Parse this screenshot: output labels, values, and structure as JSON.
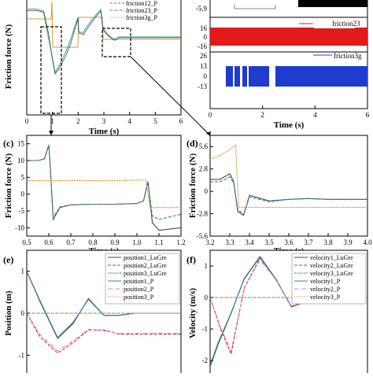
{
  "figure": {
    "title": "",
    "panel_labels": [
      "(c)",
      "(d)",
      "(e)",
      "(f)"
    ]
  },
  "panel_a": {
    "ylabel": "Friction force (N)",
    "xlabel": "Time (s)",
    "xticks": [
      "0",
      "1",
      "2",
      "3",
      "4",
      "5",
      "6"
    ],
    "legend": [
      "friction12_P",
      "friction23_P",
      "friction3g_P"
    ],
    "colors": {
      "s1": "#4a4a4a",
      "s2": "#3a7fa6",
      "s3": "#d9973a",
      "s_green": "#2f8f6a",
      "s_teal": "#4fb3a6"
    }
  },
  "panel_b": {
    "xlabel": "Time (s)",
    "xticks": [
      "0",
      "2",
      "4",
      "6"
    ],
    "top_ytick": "-5.9",
    "rows": [
      {
        "name": "friction23",
        "ticks": [
          "16",
          "0",
          "-16"
        ],
        "color": "#e31a1c"
      },
      {
        "name": "friction3g",
        "ticks": [
          "26",
          "13",
          "0",
          "-13"
        ],
        "color": "#1f3ccf"
      }
    ]
  },
  "chart_data": [
    {
      "type": "line",
      "panel": "c",
      "xlabel": "Time (s)",
      "ylabel": "Friction force (N)",
      "xlim": [
        0.5,
        1.2
      ],
      "ylim": [
        -12.5,
        17.5
      ],
      "xticks": [
        "0.5",
        "0.6",
        "0.7",
        "0.8",
        "0.9",
        "1.0",
        "1.1",
        "1.2"
      ],
      "yticks": [
        "15",
        "10",
        "5",
        "0",
        "-5",
        "-10"
      ],
      "series": [
        {
          "color": "#4a4a4a",
          "x": [
            0.5,
            0.55,
            0.58,
            0.6,
            0.605,
            0.62,
            0.65,
            0.7,
            0.8,
            0.9,
            1.0,
            1.03,
            1.05,
            1.07,
            1.1,
            1.2
          ],
          "y": [
            10,
            10,
            10.5,
            14.5,
            10,
            -7.5,
            -4,
            -3.2,
            -3,
            -3,
            -2.8,
            -2,
            3.8,
            -8.5,
            -10.8,
            -10
          ]
        },
        {
          "color": "#3a7fa6",
          "x": [
            0.5,
            0.55,
            0.58,
            0.6,
            0.605,
            0.62,
            0.65,
            0.7,
            0.8,
            0.9,
            1.0,
            1.03,
            1.05,
            1.07,
            1.1,
            1.2
          ],
          "y": [
            10,
            10,
            10.5,
            14.8,
            10,
            -7,
            -3.8,
            -3.2,
            -3,
            -3,
            -2.8,
            -2,
            3.6,
            -6.5,
            -7.5,
            -6
          ]
        },
        {
          "color": "#d9973a",
          "x": [
            0.5,
            0.6,
            0.62,
            0.9,
            1.04,
            1.06,
            1.2
          ],
          "y": [
            4,
            4,
            4,
            4,
            4.2,
            -4,
            -4
          ]
        }
      ]
    },
    {
      "type": "line",
      "panel": "d",
      "xlabel": "Time (s)",
      "ylabel": "Friction force (N)",
      "xlim": [
        3.2,
        4.0
      ],
      "ylim": [
        -5.6,
        7.0
      ],
      "xticks": [
        "3.2",
        "3.3",
        "3.4",
        "3.5",
        "3.6",
        "3.7",
        "3.8",
        "3.9",
        "4.0"
      ],
      "yticks": [
        "5.6",
        "2.8",
        "0",
        "-2.8",
        "-5.6"
      ],
      "series": [
        {
          "color": "#4a4a4a",
          "x": [
            3.2,
            3.25,
            3.3,
            3.32,
            3.34,
            3.37,
            3.4,
            3.5,
            3.6,
            3.7,
            3.8,
            3.9,
            4.0
          ],
          "y": [
            1.5,
            1.5,
            2.2,
            1.2,
            -2.5,
            -3.0,
            -0.5,
            -1.2,
            -1.0,
            -0.9,
            -1.0,
            -1.0,
            -1.0
          ]
        },
        {
          "color": "#3a7fa6",
          "x": [
            3.2,
            3.25,
            3.3,
            3.32,
            3.34,
            3.37,
            3.4,
            3.5,
            3.6,
            3.7,
            3.8,
            3.9,
            4.0
          ],
          "y": [
            1.2,
            1.2,
            1.8,
            1.0,
            -2.2,
            -2.9,
            -0.7,
            -1.3,
            -1.0,
            -0.9,
            -1.0,
            -1.0,
            -1.0
          ]
        },
        {
          "color": "#d9973a",
          "x": [
            3.2,
            3.25,
            3.3,
            3.33,
            3.345,
            3.4,
            3.6,
            4.0
          ],
          "y": [
            4.0,
            4.5,
            5.2,
            5.8,
            -2.0,
            -2.0,
            -2.0,
            -2.0
          ]
        }
      ]
    },
    {
      "type": "line",
      "panel": "e",
      "ylabel": "Position (m)",
      "xlim": [
        0,
        6
      ],
      "ylim": [
        -1.5,
        1.5
      ],
      "yticks": [
        "1",
        "0",
        "-1"
      ],
      "legend": [
        "position1_LuGre",
        "position2_LuGre",
        "position3_LuGre",
        "position1_P",
        "position2_P",
        "position3_P"
      ],
      "series": [
        {
          "name": "position1_LuGre",
          "color": "#4a4a4a",
          "x": [
            0,
            0.5,
            1.2,
            1.8,
            2.4,
            3.0,
            3.6,
            4.2,
            5,
            6
          ],
          "y": [
            1.0,
            0.3,
            -0.6,
            -0.25,
            0.35,
            -0.05,
            -0.05,
            0.0,
            0.0,
            0.0
          ]
        },
        {
          "name": "position2_LuGre",
          "color": "#c0392b",
          "x": [
            0,
            0.5,
            1.2,
            1.8,
            2.4,
            3.0,
            3.6,
            4.2,
            5,
            6
          ],
          "y": [
            0.0,
            -0.55,
            -0.95,
            -0.7,
            -0.4,
            -0.4,
            -0.5,
            -0.5,
            -0.5,
            -0.5
          ]
        },
        {
          "name": "position3_LuGre",
          "color": "#2f8f6a",
          "x": [
            0,
            6
          ],
          "y": [
            0.0,
            0.0
          ]
        },
        {
          "name": "position1_P",
          "color": "#3a7fa6",
          "x": [
            0,
            0.5,
            1.2,
            1.8,
            2.4,
            3.0,
            3.6,
            4.2,
            5,
            6
          ],
          "y": [
            1.0,
            0.32,
            -0.58,
            -0.22,
            0.33,
            -0.05,
            -0.05,
            0.0,
            0.0,
            0.0
          ]
        },
        {
          "name": "position2_P",
          "color": "#e07bb0",
          "x": [
            0,
            0.5,
            1.2,
            1.8,
            2.4,
            3.0,
            3.6,
            4.2,
            5,
            6
          ],
          "y": [
            0.0,
            -0.5,
            -0.9,
            -0.66,
            -0.38,
            -0.42,
            -0.48,
            -0.48,
            -0.48,
            -0.48
          ]
        },
        {
          "name": "position3_P",
          "color": "#d9973a",
          "x": [
            0,
            6
          ],
          "y": [
            0.0,
            0.0
          ]
        }
      ]
    },
    {
      "type": "line",
      "panel": "f",
      "ylabel": "Velocity (m/s)",
      "xlim": [
        0,
        6
      ],
      "ylim": [
        -2.5,
        1.5
      ],
      "yticks": [
        "1",
        "0",
        "-1",
        "-2"
      ],
      "legend": [
        "velocity1_LuGre",
        "velocity2_LuGre",
        "velocity3_LuGre",
        "velocity1_P",
        "velocity2_P",
        "velocity3_P"
      ],
      "series": [
        {
          "name": "velocity1_LuGre",
          "color": "#4a4a4a",
          "x": [
            0,
            0.3,
            0.8,
            1.3,
            1.9,
            2.5,
            3.1,
            3.6,
            4.0,
            6
          ],
          "y": [
            -2.2,
            -1.5,
            -0.5,
            0.6,
            1.3,
            0.6,
            -0.3,
            -0.15,
            0.0,
            0.0
          ]
        },
        {
          "name": "velocity2_LuGre",
          "color": "#c0392b",
          "x": [
            0,
            0.4,
            0.8,
            1.3,
            1.9,
            2.5,
            3.1,
            3.6,
            4.0,
            6
          ],
          "y": [
            0.0,
            -1.0,
            -1.8,
            0.3,
            1.25,
            0.6,
            -0.3,
            -0.15,
            0.0,
            0.0
          ]
        },
        {
          "name": "velocity3_LuGre",
          "color": "#2f8f6a",
          "x": [
            0,
            6
          ],
          "y": [
            0.0,
            0.0
          ]
        },
        {
          "name": "velocity1_P",
          "color": "#3a7fa6",
          "x": [
            0,
            0.3,
            0.8,
            1.3,
            1.9,
            2.5,
            3.1,
            3.6,
            4.0,
            6
          ],
          "y": [
            -2.15,
            -1.45,
            -0.48,
            0.58,
            1.28,
            0.58,
            -0.28,
            -0.14,
            0.0,
            0.0
          ]
        },
        {
          "name": "velocity2_P",
          "color": "#e07bb0",
          "x": [
            0,
            0.4,
            0.8,
            1.3,
            1.9,
            2.5,
            3.1,
            3.6,
            4.0,
            6
          ],
          "y": [
            0.0,
            -0.95,
            -1.7,
            0.28,
            1.2,
            0.58,
            -0.28,
            -0.14,
            0.0,
            0.0
          ]
        },
        {
          "name": "velocity3_P",
          "color": "#d9973a",
          "x": [
            0,
            6
          ],
          "y": [
            0.0,
            0.0
          ]
        }
      ]
    }
  ]
}
